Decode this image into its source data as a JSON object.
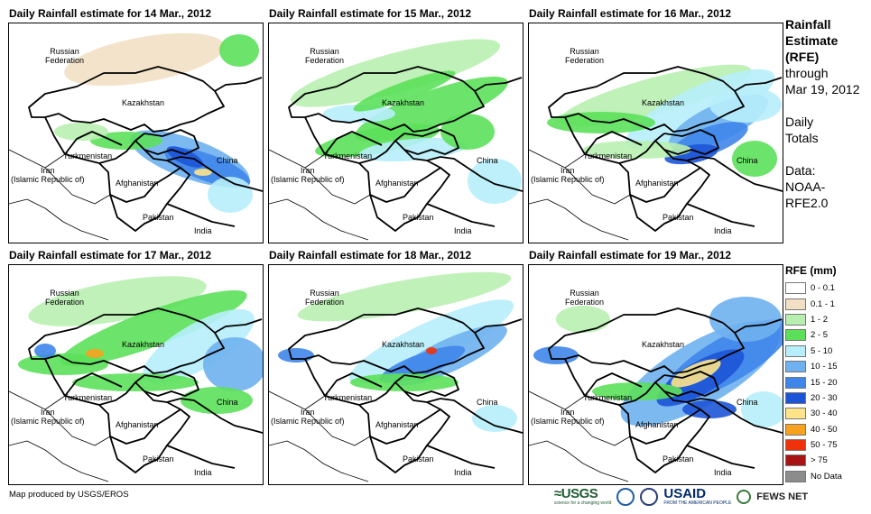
{
  "panels": [
    {
      "title": "Daily Rainfall estimate for 14 Mar., 2012"
    },
    {
      "title": "Daily Rainfall estimate for 15 Mar., 2012"
    },
    {
      "title": "Daily Rainfall estimate for 16 Mar., 2012"
    },
    {
      "title": "Daily Rainfall estimate for 17 Mar., 2012"
    },
    {
      "title": "Daily Rainfall estimate for 18 Mar., 2012"
    },
    {
      "title": "Daily Rainfall estimate for 19 Mar., 2012"
    }
  ],
  "map_labels": {
    "russia": "Russian\nFederation",
    "kazakhstan": "Kazakhstan",
    "turkmenistan": "Turkmenistan",
    "iran": "Iran\n(Islamic Republic of)",
    "afghanistan": "Afghanistan",
    "pakistan": "Pakistan",
    "india": "India",
    "china": "China"
  },
  "sidebar": {
    "heading": "Rainfall\nEstimate\n(RFE)",
    "through": "through\nMar 19, 2012",
    "totals": "Daily\nTotals",
    "data": "Data:\nNOAA-\nRFE2.0"
  },
  "legend": {
    "title": "RFE (mm)",
    "items": [
      {
        "label": "0 - 0.1",
        "color": "#ffffff"
      },
      {
        "label": "0.1 - 1",
        "color": "#f2e0c4"
      },
      {
        "label": "1 - 2",
        "color": "#b8efb0"
      },
      {
        "label": "2 - 5",
        "color": "#5ce05a"
      },
      {
        "label": "5 - 10",
        "color": "#b7eefb"
      },
      {
        "label": "10 - 15",
        "color": "#6fb1f0"
      },
      {
        "label": "15 - 20",
        "color": "#3f86ea"
      },
      {
        "label": "20 - 30",
        "color": "#1d54d7"
      },
      {
        "label": "30 - 40",
        "color": "#fde38a"
      },
      {
        "label": "40 - 50",
        "color": "#f7a21f"
      },
      {
        "label": "50 - 75",
        "color": "#f0320c"
      },
      {
        "label": "> 75",
        "color": "#a81414"
      },
      {
        "label": "No Data",
        "color": "#8c8c8c"
      }
    ]
  },
  "footer": {
    "credit": "Map produced by USGS/EROS"
  },
  "logos": {
    "usgs": "≈USGS",
    "usgs_tag": "science for a changing world",
    "usaid": "USAID",
    "usaid_tag": "FROM THE AMERICAN PEOPLE",
    "fews": "FEWS NET"
  }
}
